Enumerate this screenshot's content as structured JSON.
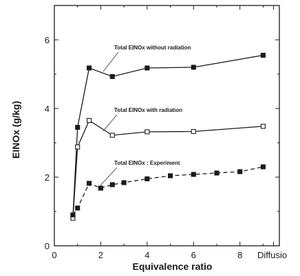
{
  "chart_data": {
    "type": "line",
    "xlabel": "Equivalence ratio",
    "ylabel": "EINOx (g/kg)",
    "xlim": [
      0,
      9.7
    ],
    "ylim": [
      0,
      7
    ],
    "x_ticks": [
      {
        "value": 0,
        "label": "0"
      },
      {
        "value": 2,
        "label": "2"
      },
      {
        "value": 4,
        "label": "4"
      },
      {
        "value": 6,
        "label": "6"
      },
      {
        "value": 8,
        "label": "8"
      },
      {
        "value": 9.45,
        "label": "Diffusio"
      }
    ],
    "y_ticks": [
      {
        "value": 0,
        "label": "0"
      },
      {
        "value": 2,
        "label": "2"
      },
      {
        "value": 4,
        "label": "4"
      },
      {
        "value": 6,
        "label": "6"
      }
    ],
    "series": [
      {
        "name": "Total EINOx without radiation",
        "marker": "filled-square",
        "dashed": false,
        "x": [
          0.8,
          1.0,
          1.5,
          2.5,
          4.0,
          6.0,
          9.0
        ],
        "y": [
          0.85,
          3.45,
          5.18,
          4.93,
          5.18,
          5.2,
          5.55
        ]
      },
      {
        "name": "Total EINOx with radiation",
        "marker": "open-square",
        "dashed": false,
        "x": [
          0.8,
          1.0,
          1.5,
          2.5,
          4.0,
          6.0,
          9.0
        ],
        "y": [
          0.8,
          2.88,
          3.65,
          3.22,
          3.32,
          3.33,
          3.48
        ]
      },
      {
        "name": "Total EINOx : Experiment",
        "marker": "filled-square",
        "dashed": true,
        "x": [
          0.8,
          1.0,
          1.5,
          2.0,
          2.5,
          3.0,
          4.0,
          5.0,
          6.0,
          7.0,
          8.0,
          9.0
        ],
        "y": [
          0.9,
          1.1,
          1.82,
          1.68,
          1.78,
          1.84,
          1.95,
          2.04,
          2.08,
          2.12,
          2.16,
          2.3
        ]
      }
    ],
    "annotations": [
      {
        "text": "Total EINOx without radiation",
        "series": 0
      },
      {
        "text": "Total EINOx with radiation",
        "series": 1
      },
      {
        "text": "Total EINOx : Experiment",
        "series": 2
      }
    ],
    "grid": false,
    "legend": "none (inline annotations)"
  }
}
